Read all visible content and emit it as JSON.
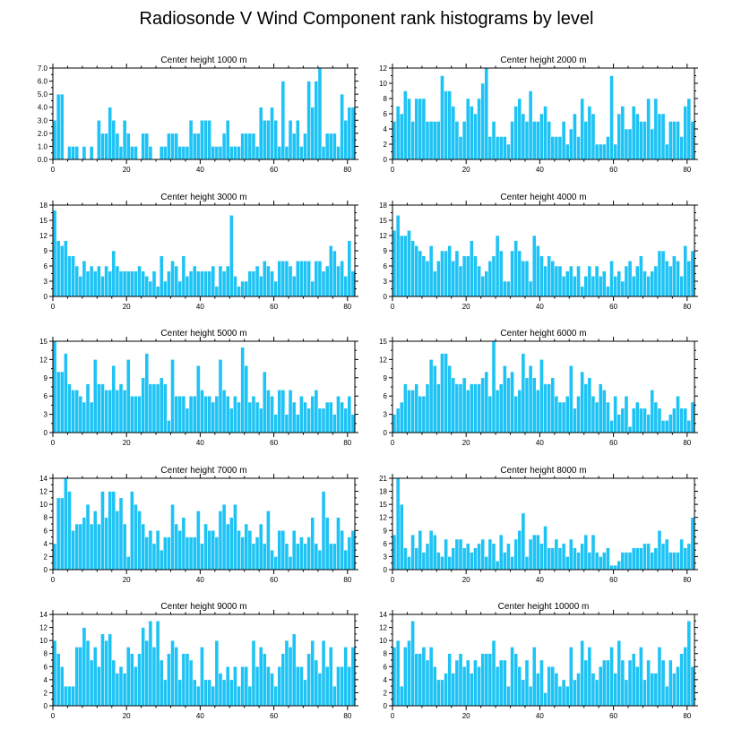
{
  "title": "Radiosonde V Wind Component rank histograms by level",
  "colors": {
    "bar": "#1EC3F5",
    "bar_edge": "#FFFFFF",
    "axis": "#000000"
  },
  "chart_data": [
    {
      "type": "bar",
      "title": "Center height 1000 m",
      "ylim": [
        0,
        7.0
      ],
      "yticks": [
        0,
        1,
        2,
        3,
        4,
        5,
        6,
        7
      ],
      "ytick_labels": [
        "0.0",
        "1.0",
        "2.0",
        "3.0",
        "4.0",
        "5.0",
        "6.0",
        "7.0"
      ],
      "xlim": [
        0,
        82
      ],
      "xticks": [
        0,
        20,
        40,
        60,
        80
      ],
      "xtick_labels": [
        "0",
        "20",
        "40",
        "60",
        "80"
      ],
      "values": [
        3,
        5,
        5,
        0,
        1,
        1,
        1,
        0,
        1,
        0,
        1,
        0,
        3,
        2,
        2,
        4,
        3,
        2,
        1,
        3,
        2,
        1,
        1,
        0,
        2,
        2,
        1,
        0,
        0,
        1,
        1,
        2,
        2,
        2,
        1,
        1,
        1,
        3,
        2,
        2,
        3,
        3,
        3,
        1,
        1,
        1,
        2,
        3,
        1,
        1,
        1,
        2,
        2,
        2,
        2,
        1,
        4,
        3,
        3,
        4,
        3,
        1,
        6,
        1,
        3,
        2,
        3,
        1,
        2,
        6,
        4,
        6,
        7,
        1,
        2,
        2,
        2,
        1,
        5,
        3,
        4,
        4
      ]
    },
    {
      "type": "bar",
      "title": "Center height 2000 m",
      "ylim": [
        0,
        12
      ],
      "yticks": [
        0,
        2,
        4,
        6,
        8,
        10,
        12
      ],
      "ytick_labels": [
        "0",
        "2",
        "4",
        "6",
        "8",
        "10",
        "12"
      ],
      "xlim": [
        0,
        82
      ],
      "xticks": [
        0,
        20,
        40,
        60,
        80
      ],
      "xtick_labels": [
        "0",
        "20",
        "40",
        "60",
        "80"
      ],
      "values": [
        5,
        7,
        6,
        9,
        8,
        5,
        8,
        8,
        8,
        5,
        5,
        5,
        5,
        11,
        9,
        9,
        7,
        5,
        3,
        5,
        8,
        7,
        6,
        8,
        10,
        12,
        3,
        5,
        3,
        3,
        3,
        2,
        5,
        7,
        8,
        6,
        5,
        9,
        5,
        5,
        6,
        7,
        5,
        3,
        3,
        3,
        5,
        2,
        4,
        6,
        3,
        8,
        5,
        7,
        6,
        2,
        2,
        2,
        3,
        11,
        2,
        6,
        7,
        4,
        4,
        7,
        6,
        5,
        5,
        8,
        4,
        8,
        6,
        6,
        2,
        5,
        5,
        5,
        3,
        7,
        8,
        5
      ]
    },
    {
      "type": "bar",
      "title": "Center height 3000 m",
      "ylim": [
        0,
        18
      ],
      "yticks": [
        0,
        3,
        6,
        9,
        12,
        15,
        18
      ],
      "ytick_labels": [
        "0",
        "3",
        "6",
        "9",
        "12",
        "15",
        "18"
      ],
      "xlim": [
        0,
        82
      ],
      "xticks": [
        0,
        20,
        40,
        60,
        80
      ],
      "xtick_labels": [
        "0",
        "20",
        "40",
        "60",
        "80"
      ],
      "values": [
        17,
        11,
        10,
        11,
        8,
        8,
        6,
        4,
        7,
        5,
        6,
        5,
        6,
        4,
        6,
        5,
        9,
        6,
        5,
        5,
        5,
        5,
        5,
        6,
        5,
        4,
        3,
        5,
        2,
        8,
        3,
        5,
        7,
        6,
        3,
        8,
        4,
        5,
        6,
        5,
        5,
        5,
        5,
        6,
        2,
        6,
        5,
        6,
        16,
        4,
        2,
        3,
        3,
        5,
        5,
        6,
        4,
        7,
        6,
        5,
        3,
        7,
        7,
        7,
        6,
        4,
        7,
        7,
        7,
        7,
        3,
        7,
        7,
        5,
        6,
        10,
        9,
        6,
        7,
        4,
        11,
        5
      ]
    },
    {
      "type": "bar",
      "title": "Center height 4000 m",
      "ylim": [
        0,
        18
      ],
      "yticks": [
        0,
        3,
        6,
        9,
        12,
        15,
        18
      ],
      "ytick_labels": [
        "0",
        "3",
        "6",
        "9",
        "12",
        "15",
        "18"
      ],
      "xlim": [
        0,
        82
      ],
      "xticks": [
        0,
        20,
        40,
        60,
        80
      ],
      "xtick_labels": [
        "0",
        "20",
        "40",
        "60",
        "80"
      ],
      "values": [
        13,
        16,
        12,
        12,
        13,
        11,
        10,
        9,
        8,
        7,
        10,
        5,
        7,
        9,
        9,
        10,
        7,
        9,
        6,
        8,
        8,
        11,
        8,
        6,
        4,
        5,
        7,
        8,
        12,
        9,
        3,
        3,
        9,
        11,
        9,
        7,
        7,
        3,
        12,
        10,
        8,
        6,
        8,
        7,
        6,
        6,
        4,
        5,
        6,
        4,
        6,
        2,
        4,
        6,
        4,
        6,
        4,
        5,
        2,
        7,
        4,
        5,
        3,
        6,
        7,
        4,
        6,
        8,
        5,
        4,
        5,
        6,
        9,
        9,
        7,
        6,
        8,
        7,
        4,
        10,
        7,
        9
      ]
    },
    {
      "type": "bar",
      "title": "Center height 5000 m",
      "ylim": [
        0,
        15
      ],
      "yticks": [
        0,
        3,
        6,
        9,
        12,
        15
      ],
      "ytick_labels": [
        "0",
        "3",
        "6",
        "9",
        "12",
        "15"
      ],
      "xlim": [
        0,
        82
      ],
      "xticks": [
        0,
        20,
        40,
        60,
        80
      ],
      "xtick_labels": [
        "0",
        "20",
        "40",
        "60",
        "80"
      ],
      "values": [
        15,
        10,
        10,
        13,
        8,
        7,
        7,
        6,
        5,
        8,
        5,
        12,
        8,
        8,
        7,
        7,
        11,
        7,
        8,
        7,
        12,
        6,
        6,
        6,
        9,
        13,
        8,
        8,
        8,
        9,
        8,
        2,
        12,
        6,
        6,
        6,
        4,
        6,
        6,
        11,
        7,
        6,
        6,
        5,
        6,
        12,
        7,
        6,
        4,
        6,
        5,
        14,
        11,
        5,
        6,
        5,
        4,
        10,
        7,
        6,
        3,
        7,
        7,
        3,
        7,
        5,
        3,
        6,
        5,
        4,
        6,
        7,
        4,
        4,
        5,
        5,
        3,
        6,
        5,
        4,
        6,
        3
      ]
    },
    {
      "type": "bar",
      "title": "Center height 6000 m",
      "ylim": [
        0,
        15
      ],
      "yticks": [
        0,
        3,
        6,
        9,
        12,
        15
      ],
      "ytick_labels": [
        "0",
        "3",
        "6",
        "9",
        "12",
        "15"
      ],
      "xlim": [
        0,
        82
      ],
      "xticks": [
        0,
        20,
        40,
        60,
        80
      ],
      "xtick_labels": [
        "0",
        "20",
        "40",
        "60",
        "80"
      ],
      "values": [
        3,
        4,
        5,
        8,
        7,
        7,
        8,
        6,
        6,
        8,
        12,
        11,
        8,
        13,
        13,
        11,
        9,
        8,
        8,
        9,
        7,
        8,
        8,
        8,
        9,
        10,
        6,
        15,
        7,
        8,
        11,
        9,
        10,
        6,
        7,
        13,
        9,
        11,
        9,
        7,
        12,
        8,
        8,
        9,
        6,
        5,
        5,
        6,
        11,
        4,
        6,
        10,
        8,
        9,
        6,
        5,
        8,
        7,
        5,
        2,
        6,
        3,
        4,
        6,
        1,
        4,
        5,
        4,
        4,
        3,
        7,
        5,
        4,
        2,
        2,
        3,
        4,
        6,
        4,
        4,
        2,
        5
      ]
    },
    {
      "type": "bar",
      "title": "Center height 7000 m",
      "ylim": [
        0,
        14
      ],
      "yticks": [
        0,
        2,
        4,
        6,
        8,
        10,
        12,
        14
      ],
      "ytick_labels": [
        "0",
        "2",
        "4",
        "6",
        "8",
        "10",
        "12",
        "14"
      ],
      "xlim": [
        0,
        82
      ],
      "xticks": [
        0,
        20,
        40,
        60,
        80
      ],
      "xtick_labels": [
        "0",
        "20",
        "40",
        "60",
        "80"
      ],
      "values": [
        4,
        11,
        11,
        14,
        12,
        6,
        7,
        7,
        8,
        10,
        7,
        9,
        7,
        12,
        8,
        12,
        12,
        9,
        11,
        7,
        2,
        12,
        10,
        9,
        7,
        5,
        6,
        4,
        6,
        3,
        5,
        5,
        10,
        7,
        6,
        8,
        5,
        5,
        5,
        9,
        4,
        7,
        6,
        6,
        5,
        9,
        10,
        7,
        8,
        10,
        6,
        5,
        7,
        6,
        4,
        5,
        7,
        4,
        9,
        3,
        2,
        6,
        6,
        4,
        2,
        6,
        4,
        5,
        4,
        5,
        8,
        4,
        3,
        12,
        8,
        4,
        4,
        8,
        6,
        3,
        5,
        6
      ]
    },
    {
      "type": "bar",
      "title": "Center height 8000 m",
      "ylim": [
        0,
        21
      ],
      "yticks": [
        0,
        3,
        6,
        9,
        12,
        15,
        18,
        21
      ],
      "ytick_labels": [
        "0",
        "3",
        "6",
        "9",
        "12",
        "15",
        "18",
        "21"
      ],
      "xlim": [
        0,
        82
      ],
      "xticks": [
        0,
        20,
        40,
        60,
        80
      ],
      "xtick_labels": [
        "0",
        "20",
        "40",
        "60",
        "80"
      ],
      "values": [
        8,
        21,
        15,
        5,
        3,
        8,
        5,
        9,
        4,
        6,
        9,
        8,
        4,
        3,
        7,
        3,
        5,
        7,
        7,
        5,
        6,
        4,
        5,
        6,
        7,
        3,
        7,
        6,
        2,
        8,
        4,
        6,
        3,
        7,
        9,
        13,
        3,
        7,
        8,
        8,
        6,
        10,
        5,
        5,
        7,
        5,
        6,
        3,
        7,
        5,
        4,
        6,
        8,
        4,
        8,
        4,
        3,
        4,
        5,
        1,
        1,
        2,
        4,
        4,
        4,
        5,
        5,
        5,
        6,
        6,
        4,
        5,
        9,
        6,
        7,
        4,
        4,
        4,
        7,
        5,
        6,
        12
      ]
    },
    {
      "type": "bar",
      "title": "Center height 9000 m",
      "ylim": [
        0,
        14
      ],
      "yticks": [
        0,
        2,
        4,
        6,
        8,
        10,
        12,
        14
      ],
      "ytick_labels": [
        "0",
        "2",
        "4",
        "6",
        "8",
        "10",
        "12",
        "14"
      ],
      "xlim": [
        0,
        82
      ],
      "xticks": [
        0,
        20,
        40,
        60,
        80
      ],
      "xtick_labels": [
        "0",
        "20",
        "40",
        "60",
        "80"
      ],
      "values": [
        10,
        8,
        6,
        3,
        3,
        3,
        9,
        9,
        12,
        10,
        7,
        9,
        6,
        11,
        10,
        11,
        7,
        5,
        6,
        5,
        9,
        8,
        6,
        8,
        12,
        10,
        13,
        9,
        13,
        7,
        4,
        8,
        10,
        9,
        4,
        8,
        8,
        7,
        4,
        3,
        9,
        4,
        4,
        3,
        10,
        5,
        4,
        6,
        4,
        6,
        3,
        6,
        6,
        3,
        10,
        6,
        9,
        8,
        6,
        5,
        3,
        6,
        8,
        10,
        9,
        11,
        6,
        6,
        4,
        8,
        10,
        7,
        5,
        10,
        6,
        9,
        3,
        6,
        6,
        9,
        6,
        9
      ]
    },
    {
      "type": "bar",
      "title": "Center height 10000 m",
      "ylim": [
        0,
        14
      ],
      "yticks": [
        0,
        2,
        4,
        6,
        8,
        10,
        12,
        14
      ],
      "ytick_labels": [
        "0",
        "2",
        "4",
        "6",
        "8",
        "10",
        "12",
        "14"
      ],
      "xlim": [
        0,
        82
      ],
      "xticks": [
        0,
        20,
        40,
        60,
        80
      ],
      "xtick_labels": [
        "0",
        "20",
        "40",
        "60",
        "80"
      ],
      "values": [
        9,
        10,
        3,
        9,
        10,
        13,
        8,
        8,
        9,
        7,
        9,
        6,
        4,
        4,
        5,
        8,
        5,
        7,
        8,
        6,
        7,
        5,
        7,
        6,
        8,
        8,
        8,
        10,
        6,
        7,
        7,
        3,
        9,
        8,
        6,
        4,
        7,
        3,
        9,
        5,
        7,
        2,
        6,
        6,
        5,
        3,
        4,
        3,
        9,
        4,
        5,
        10,
        7,
        9,
        5,
        4,
        6,
        7,
        7,
        9,
        5,
        10,
        7,
        4,
        7,
        8,
        6,
        9,
        4,
        7,
        5,
        5,
        9,
        7,
        3,
        7,
        5,
        6,
        8,
        9,
        13,
        6
      ]
    }
  ]
}
